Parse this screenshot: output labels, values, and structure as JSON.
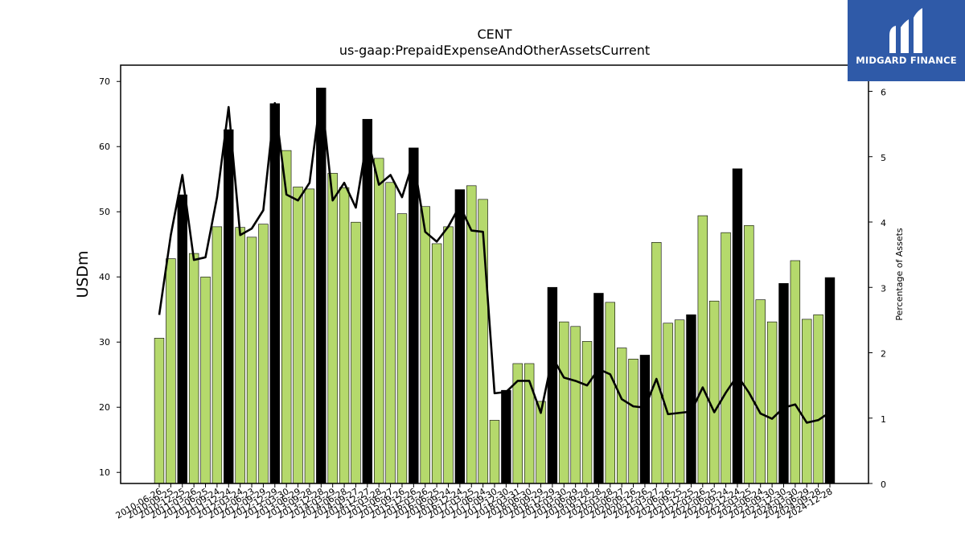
{
  "brand": {
    "name": "MIDGARD FINANCE",
    "bg": "#2f5aa8"
  },
  "chart_data": {
    "type": "bar",
    "title": "CENT",
    "subtitle": "us-gaap:PrepaidExpenseAndOtherAssetsCurrent",
    "ylabel": "USDm",
    "y2label": "Percentage of Assets",
    "ylim": [
      8.3,
      72.5
    ],
    "y2lim": [
      0,
      6.4
    ],
    "yticks": [
      10,
      20,
      30,
      40,
      50,
      60,
      70
    ],
    "y2ticks": [
      0,
      1,
      2,
      3,
      4,
      5,
      6
    ],
    "colors": {
      "quarter": "#b5d96c",
      "year_end": "#000000",
      "line": "#000000"
    },
    "x": [
      "2010-06-26",
      "2010-09-25",
      "2010-12-25",
      "2011-03-26",
      "2011-06-25",
      "2011-09-24",
      "2011-12-24",
      "2012-03-24",
      "2012-06-23",
      "2012-09-29",
      "2012-12-29",
      "2013-03-30",
      "2013-06-29",
      "2013-09-28",
      "2013-12-28",
      "2014-03-29",
      "2014-06-28",
      "2014-09-27",
      "2014-12-27",
      "2015-03-28",
      "2015-06-27",
      "2015-09-26",
      "2015-12-26",
      "2016-03-26",
      "2016-06-25",
      "2016-09-24",
      "2016-12-24",
      "2017-03-25",
      "2017-06-24",
      "2017-09-30",
      "2017-12-30",
      "2018-03-31",
      "2018-06-30",
      "2018-09-29",
      "2018-12-29",
      "2019-03-30",
      "2019-06-29",
      "2019-09-28",
      "2019-12-28",
      "2020-03-28",
      "2020-06-27",
      "2020-09-26",
      "2020-12-26",
      "2021-03-27",
      "2021-06-26",
      "2021-09-25",
      "2021-12-25",
      "2022-03-26",
      "2022-06-25",
      "2022-09-24",
      "2022-12-24",
      "2023-03-25",
      "2023-06-24",
      "2023-09-30",
      "2023-12-30",
      "2024-03-30",
      "2024-06-29",
      "2024-09-28",
      "2024-12-28"
    ],
    "tick_labels_shown": [
      "2010-06-26",
      "2010-09-25",
      "2010-12-25",
      "2011-03-26",
      "2011-06-25",
      "2011-09-24",
      "2011-12-24",
      "2012-03-24",
      "2012-06-23",
      "2012-09-29",
      "2012-12-29",
      "2013-03-30",
      "2013-06-29",
      "2013-09-28",
      "2013-12-28",
      "2014-03-29",
      "2014-06-28",
      "2014-09-27",
      "2014-12-27",
      "2015-03-28",
      "2015-06-27",
      "2015-09-26",
      "2015-12-26",
      "2016-03-26",
      "2016-06-25",
      "2016-09-24",
      "2016-12-24",
      "2017-03-25",
      "2017-06-24",
      "2017-09-30",
      "2017-12-30",
      "2018-03-31",
      "2018-06-30",
      "2018-09-29",
      "2018-12-29",
      "2019-03-30",
      "2019-06-29",
      "2019-09-28",
      "2019-12-28",
      "2020-03-28",
      "2020-06-27",
      "2020-09-26",
      "2020-12-26",
      "2021-03-27",
      "2021-06-26",
      "2021-09-25",
      "2021-12-25",
      "2022-03-26",
      "2022-06-25",
      "2022-09-24",
      "2022-12-24",
      "2023-03-25",
      "2023-06-24",
      "2023-09-30",
      "2023-12-30",
      "2024-03-30",
      "2024-06-29",
      "2024-09-28",
      "2024-12-28"
    ],
    "series": [
      {
        "values": [
          30.6,
          42.8,
          52.6,
          43.6,
          40.0,
          47.7,
          62.6,
          47.6,
          46.1,
          48.1,
          66.6,
          59.4,
          53.8,
          53.5,
          69.0,
          55.9,
          53.7,
          48.4,
          64.2,
          58.2,
          54.5,
          49.7,
          59.8,
          50.8,
          45.1,
          47.7,
          53.4,
          54.0,
          51.9,
          18.0,
          22.6,
          26.7,
          26.7,
          20.9,
          38.4,
          33.1,
          32.4,
          30.1,
          37.5,
          36.1,
          29.1,
          27.4,
          28.0,
          45.3,
          32.9,
          33.4,
          34.2,
          49.4,
          36.3,
          46.8,
          56.6,
          47.9,
          36.5,
          33.1,
          39.0,
          42.5,
          33.5,
          34.2,
          39.9
        ],
        "year_end": [
          false,
          false,
          true,
          false,
          false,
          false,
          true,
          false,
          false,
          false,
          true,
          false,
          false,
          false,
          true,
          false,
          false,
          false,
          true,
          false,
          false,
          false,
          true,
          false,
          false,
          false,
          true,
          false,
          false,
          false,
          true,
          false,
          false,
          false,
          true,
          false,
          false,
          false,
          true,
          false,
          false,
          false,
          true,
          false,
          false,
          false,
          true,
          false,
          false,
          false,
          true,
          false,
          false,
          false,
          true,
          false,
          false,
          false,
          true
        ]
      },
      {
        "axis": "y2",
        "type": "line",
        "values": [
          2.58,
          3.8,
          4.72,
          3.42,
          3.46,
          4.38,
          5.76,
          3.8,
          3.9,
          4.18,
          5.82,
          4.42,
          4.33,
          4.6,
          5.98,
          4.33,
          4.6,
          4.22,
          5.3,
          4.57,
          4.72,
          4.38,
          4.95,
          3.85,
          3.7,
          3.93,
          4.25,
          3.87,
          3.85,
          1.38,
          1.4,
          1.57,
          1.57,
          1.08,
          1.93,
          1.62,
          1.57,
          1.5,
          1.75,
          1.67,
          1.29,
          1.18,
          1.16,
          1.6,
          1.06,
          1.08,
          1.1,
          1.47,
          1.09,
          1.39,
          1.65,
          1.39,
          1.07,
          0.99,
          1.16,
          1.21,
          0.93,
          0.97,
          1.09
        ]
      }
    ]
  }
}
